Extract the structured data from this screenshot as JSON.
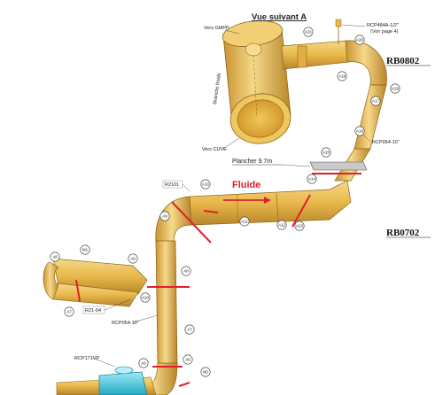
{
  "view_title": "Vue suivant A",
  "labels": {
    "vers_gmpp": "Vers GMPP",
    "branche_froide": "Branche froide",
    "vers_cuve": "Vers CUVE",
    "rcp484": "RCP484A-1/2\"",
    "voir_page": "(Voir page 4)",
    "rcp054_upper": "RCP054-10\"",
    "rcp054_lower": "RCP054-10\"",
    "rcp171": "RCP171VP",
    "plancher": "Plancher 9.7m",
    "fluide": "Fluide",
    "r2101": "R2101",
    "r2104": "R21-04"
  },
  "refs": {
    "rb0802": "RB0802",
    "rb0702": "RB0702"
  },
  "bubbles": [
    "A21",
    "A20",
    "A19",
    "A18",
    "A17",
    "A16",
    "A15",
    "A14",
    "A13",
    "A12",
    "A11",
    "A10",
    "A9",
    "A8",
    "A7",
    "A6",
    "A5",
    "M1",
    "A9",
    "A8",
    "A10",
    "A7",
    "N6"
  ],
  "colors": {
    "pipe": "#e8b84a",
    "pipe_dark": "#b8862a",
    "cut_line": "#e0202a",
    "fluide": "#e0202a",
    "nozzle": "#40c8e0"
  }
}
